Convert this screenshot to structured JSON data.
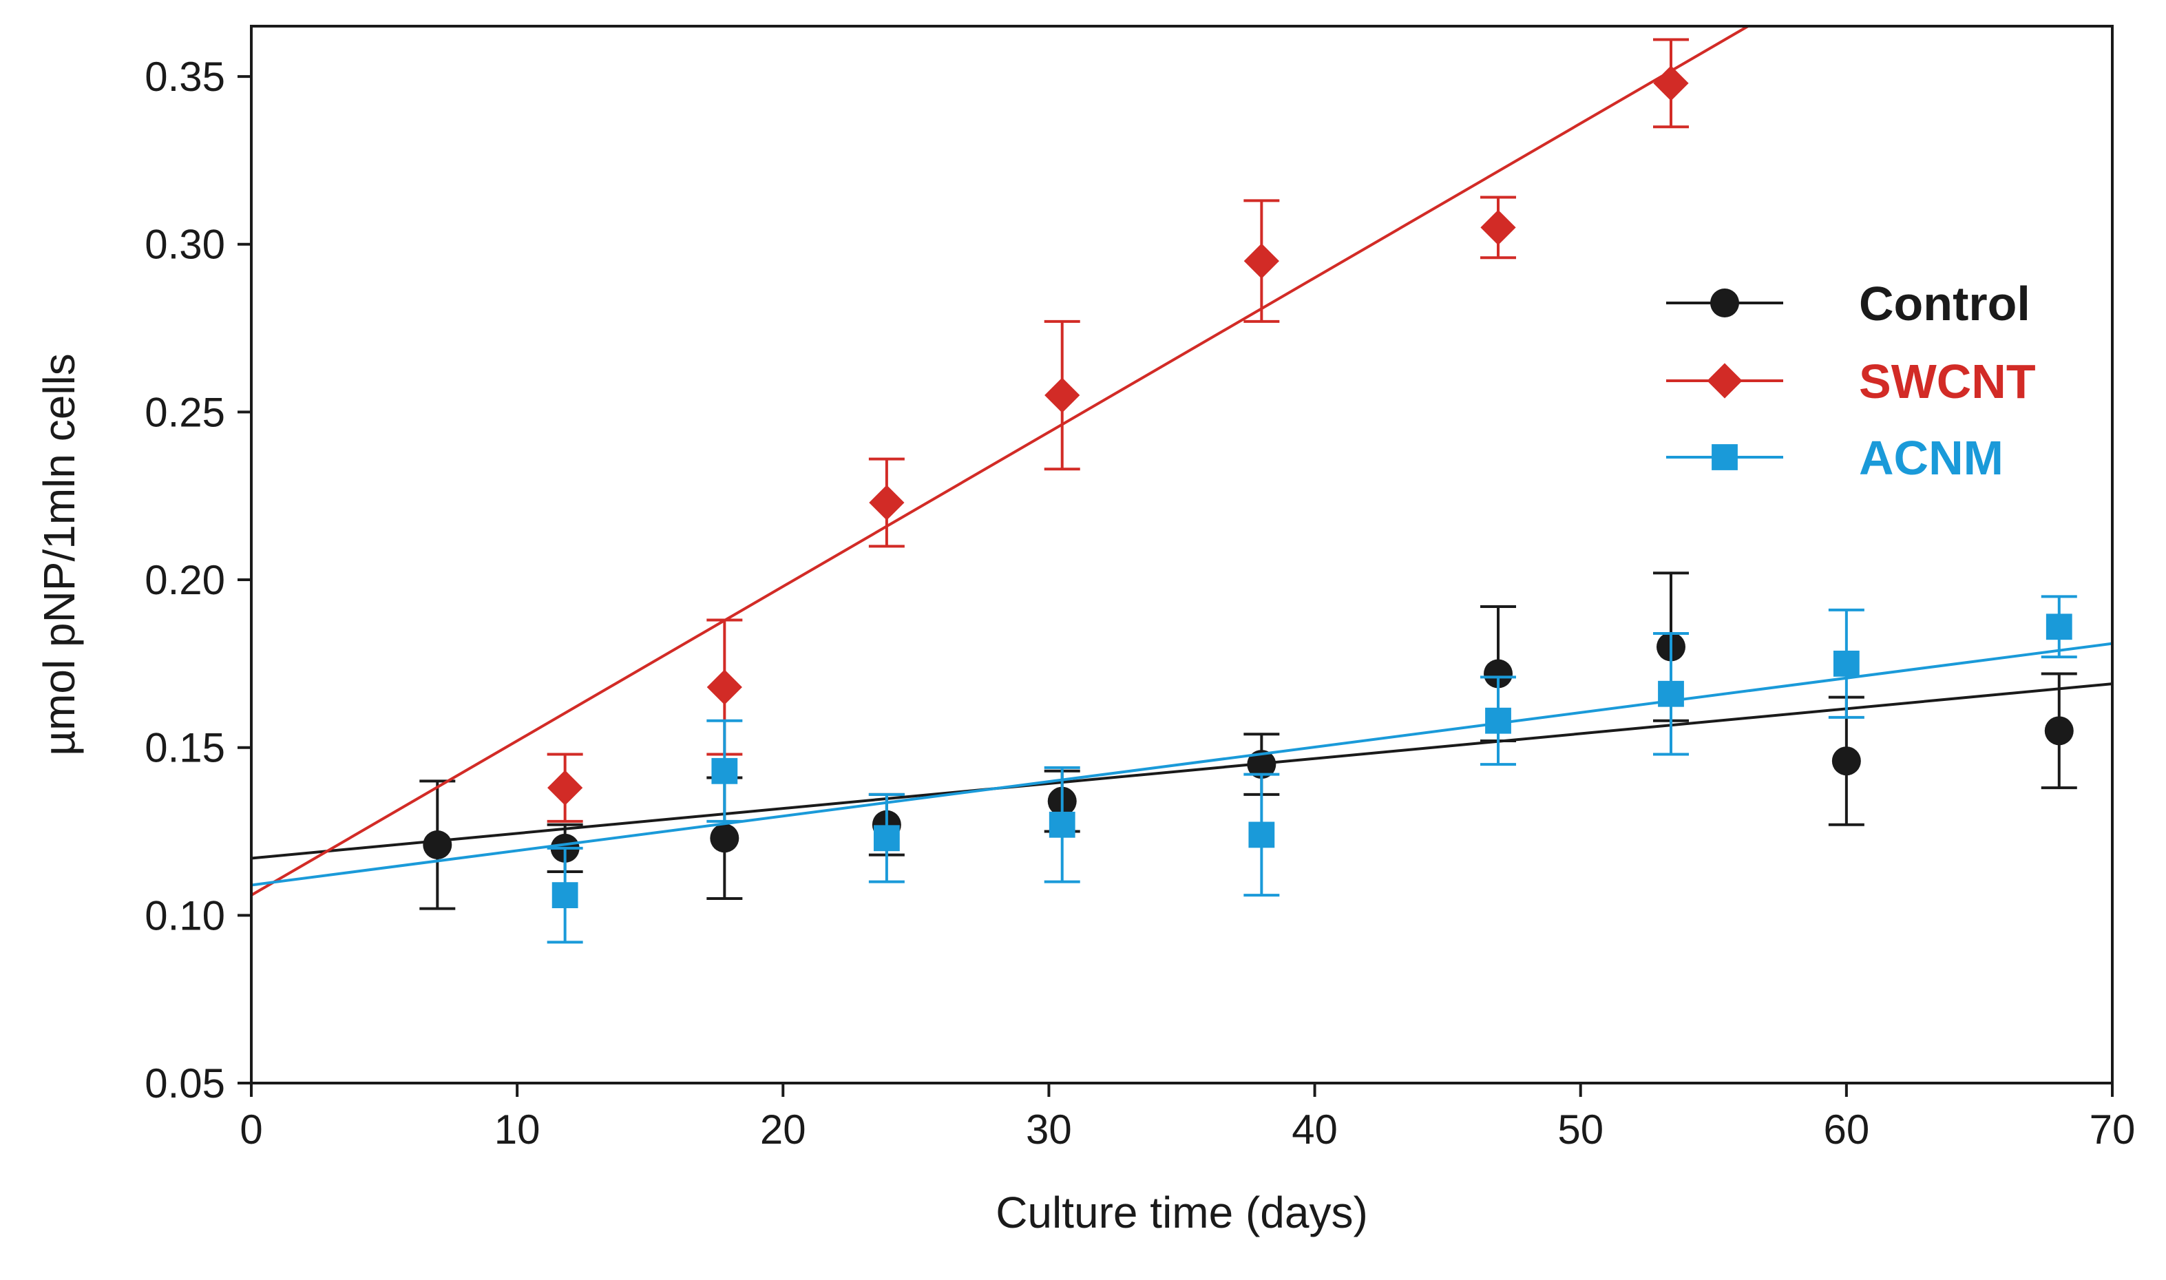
{
  "chart_data": {
    "type": "scatter",
    "xlabel": "Culture time (days)",
    "ylabel": "µmol pNP/1mln cells",
    "xlim": [
      0,
      70
    ],
    "ylim": [
      0.05,
      0.365
    ],
    "x_ticks": [
      0,
      10,
      20,
      30,
      40,
      50,
      60,
      70
    ],
    "x_tick_labels": [
      "0",
      "10",
      "20",
      "30",
      "40",
      "50",
      "60",
      "70"
    ],
    "y_ticks": [
      0.05,
      0.1,
      0.15,
      0.2,
      0.25,
      0.3,
      0.35
    ],
    "y_tick_labels": [
      "0.05",
      "0.10",
      "0.15",
      "0.20",
      "0.25",
      "0.30",
      "0.35"
    ],
    "grid": false,
    "legend_position": "right, middle-upper",
    "series": [
      {
        "name": "Control",
        "color": "#1a1a1a",
        "marker": "circle",
        "x": [
          7,
          11.8,
          17.8,
          23.9,
          30.5,
          38,
          46.9,
          53.4,
          60,
          68
        ],
        "y": [
          0.121,
          0.12,
          0.123,
          0.127,
          0.134,
          0.145,
          0.172,
          0.18,
          0.146,
          0.155
        ],
        "err": [
          0.019,
          0.007,
          0.018,
          0.009,
          0.009,
          0.009,
          0.02,
          0.022,
          0.019,
          0.017
        ],
        "fit": {
          "x": [
            0,
            70
          ],
          "y": [
            0.117,
            0.169
          ]
        }
      },
      {
        "name": "SWCNT",
        "color": "#d22b26",
        "marker": "diamond",
        "x": [
          11.8,
          17.8,
          23.9,
          30.5,
          38,
          46.9,
          53.4
        ],
        "y": [
          0.138,
          0.168,
          0.223,
          0.255,
          0.295,
          0.305,
          0.348
        ],
        "err": [
          0.01,
          0.02,
          0.013,
          0.022,
          0.018,
          0.009,
          0.013
        ],
        "fit": {
          "x": [
            0,
            56.3
          ],
          "y": [
            0.106,
            0.365
          ]
        }
      },
      {
        "name": "ACNM",
        "color": "#1a9ad9",
        "marker": "square",
        "x": [
          11.8,
          17.8,
          23.9,
          30.5,
          38,
          46.9,
          53.4,
          60,
          68
        ],
        "y": [
          0.106,
          0.143,
          0.123,
          0.127,
          0.124,
          0.158,
          0.166,
          0.175,
          0.186
        ],
        "err": [
          0.014,
          0.015,
          0.013,
          0.017,
          0.018,
          0.013,
          0.018,
          0.016,
          0.009
        ],
        "fit": {
          "x": [
            0,
            70
          ],
          "y": [
            0.109,
            0.181
          ]
        }
      }
    ]
  }
}
